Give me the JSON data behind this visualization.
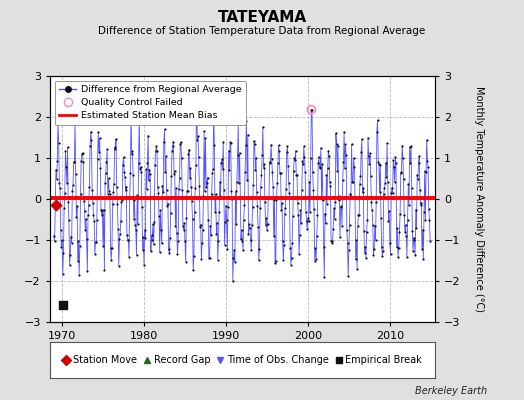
{
  "title": "TATEYAMA",
  "subtitle": "Difference of Station Temperature Data from Regional Average",
  "ylabel": "Monthly Temperature Anomaly Difference (°C)",
  "xlabel_years": [
    1970,
    1980,
    1990,
    2000,
    2010
  ],
  "xlim": [
    1968.5,
    2015.5
  ],
  "ylim": [
    -3,
    3
  ],
  "yticks": [
    -3,
    -2,
    -1,
    0,
    1,
    2,
    3
  ],
  "mean_bias": 0.03,
  "bias_start": 1968.5,
  "bias_end": 2015.5,
  "line_color": "#5555ff",
  "dot_color": "#111111",
  "bias_color": "#ff0000",
  "qc_fail_x": 2000.42,
  "qc_fail_y": 2.18,
  "station_move_x": 1969.25,
  "station_move_y": -0.15,
  "empirical_break_x": 1970.17,
  "empirical_break_y": -2.58,
  "background_color": "#e0e0e0",
  "plot_bg_color": "#ffffff",
  "grid_color": "#bbbbbb",
  "berkeley_earth_text": "Berkeley Earth",
  "seed": 42,
  "n_years": 46,
  "start_year": 1969,
  "months_per_year": 12,
  "seasonal_amp": 1.15,
  "noise_amp": 0.45
}
